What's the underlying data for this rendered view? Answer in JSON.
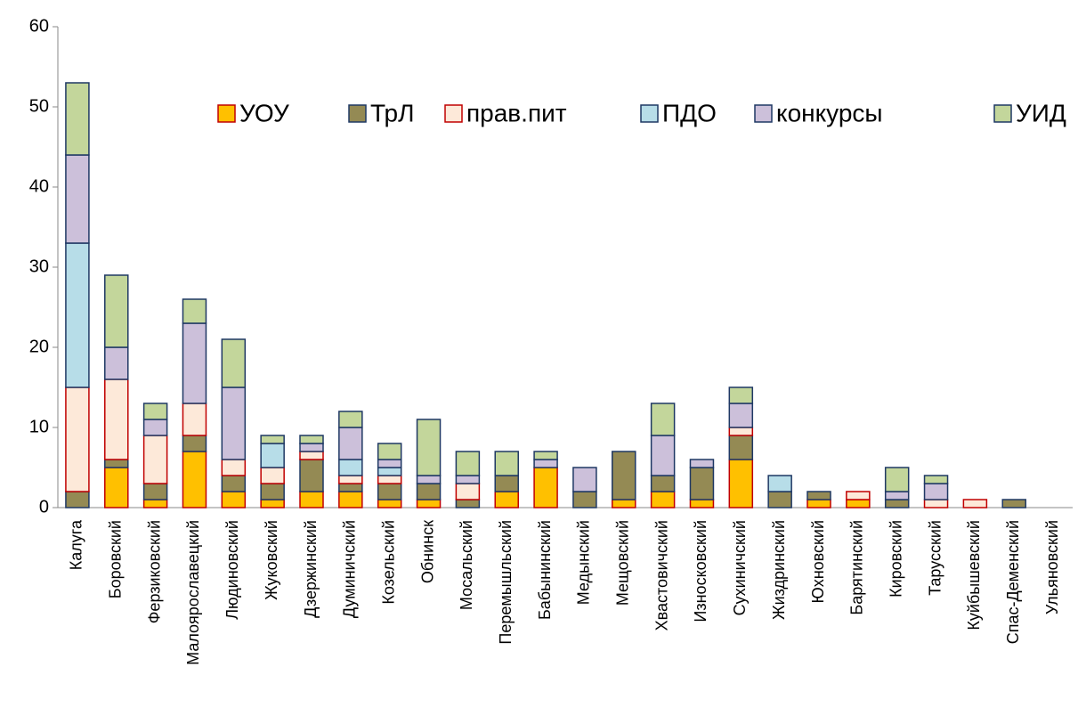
{
  "chart_data": {
    "type": "stacked_bar",
    "categories": [
      "Калуга",
      "Боровский",
      "Ферзиковский",
      "Малоярославецкий",
      "Людиновский",
      "Жуковский",
      "Дзержинский",
      "Думиничский",
      "Козельский",
      "Обнинск",
      "Мосальский",
      "Перемышльский",
      "Бабынинский",
      "Медынский",
      "Мещовский",
      "Хвастовичский",
      "Износковский",
      "Сухиничский",
      "Жиздринский",
      "Юхновский",
      "Барятинский",
      "Кировский",
      "Тарусский",
      "Куйбышевский",
      "Спас-Деменский",
      "Ульяновский"
    ],
    "series": [
      {
        "name": "УОУ",
        "color": "#ffc000",
        "edgecolor": "#c00000",
        "values": [
          0,
          5,
          1,
          7,
          2,
          1,
          2,
          2,
          1,
          1,
          0,
          2,
          5,
          0,
          1,
          2,
          1,
          6,
          0,
          1,
          1,
          0,
          0,
          0,
          0,
          0
        ]
      },
      {
        "name": "ТрЛ",
        "color": "#948a54",
        "edgecolor": "#1f3864",
        "values": [
          2,
          1,
          2,
          2,
          2,
          2,
          4,
          1,
          2,
          2,
          1,
          2,
          0,
          2,
          6,
          2,
          4,
          3,
          2,
          1,
          0,
          1,
          0,
          0,
          1,
          0
        ]
      },
      {
        "name": "прав.пит",
        "color": "#fde9d9",
        "edgecolor": "#c00000",
        "values": [
          13,
          10,
          6,
          4,
          2,
          2,
          1,
          1,
          1,
          0,
          2,
          0,
          0,
          0,
          0,
          0,
          0,
          1,
          0,
          0,
          1,
          0,
          1,
          1,
          0,
          0
        ]
      },
      {
        "name": "ПДО",
        "color": "#b7dde8",
        "edgecolor": "#1f3864",
        "values": [
          18,
          0,
          0,
          0,
          0,
          3,
          0,
          2,
          1,
          0,
          0,
          0,
          0,
          0,
          0,
          0,
          0,
          0,
          2,
          0,
          0,
          0,
          0,
          0,
          0,
          0
        ]
      },
      {
        "name": "конкурсы",
        "color": "#ccc0da",
        "edgecolor": "#1f3864",
        "values": [
          11,
          4,
          2,
          10,
          9,
          0,
          1,
          4,
          1,
          1,
          1,
          0,
          1,
          3,
          0,
          5,
          1,
          3,
          0,
          0,
          0,
          1,
          2,
          0,
          0,
          0
        ]
      },
      {
        "name": "УИД",
        "color": "#c3d69b",
        "edgecolor": "#1f3864",
        "values": [
          9,
          9,
          2,
          3,
          6,
          1,
          1,
          2,
          2,
          7,
          3,
          3,
          1,
          0,
          0,
          4,
          0,
          2,
          0,
          0,
          0,
          3,
          1,
          0,
          0,
          0
        ]
      }
    ],
    "ylim": [
      0,
      60
    ],
    "yticks": [
      0,
      10,
      20,
      30,
      40,
      50,
      60
    ],
    "legend": "top"
  }
}
